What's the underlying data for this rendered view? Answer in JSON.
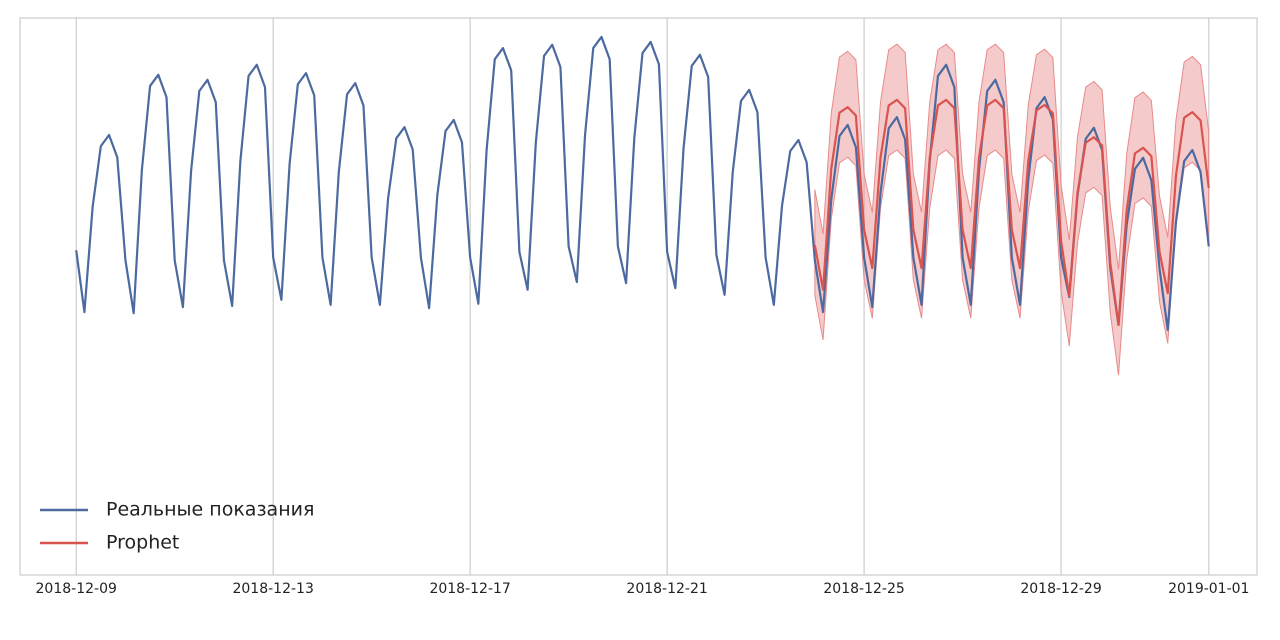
{
  "chart_data": {
    "type": "line",
    "xlim": [
      -27.4,
      575.5
    ],
    "ylim": [
      0,
      100
    ],
    "xticks": [
      {
        "value": 0,
        "label": "2018-12-09"
      },
      {
        "value": 96,
        "label": "2018-12-13"
      },
      {
        "value": 192,
        "label": "2018-12-17"
      },
      {
        "value": 288,
        "label": "2018-12-21"
      },
      {
        "value": 384,
        "label": "2018-12-25"
      },
      {
        "value": 480,
        "label": "2018-12-29"
      },
      {
        "value": 552,
        "label": "2019-01-01"
      }
    ],
    "grid": true,
    "legend": "lower left",
    "series": [
      {
        "name": "Реальные показания",
        "color": "#4c6aa0",
        "x": [
          0,
          4,
          8,
          12,
          16,
          20,
          24,
          28,
          32,
          36,
          40,
          44,
          48,
          52,
          56,
          60,
          64,
          68,
          72,
          76,
          80,
          84,
          88,
          92,
          96,
          100,
          104,
          108,
          112,
          116,
          120,
          124,
          128,
          132,
          136,
          140,
          144,
          148,
          152,
          156,
          160,
          164,
          168,
          172,
          176,
          180,
          184,
          188,
          192,
          196,
          200,
          204,
          208,
          212,
          216,
          220,
          224,
          228,
          232,
          236,
          240,
          244,
          248,
          252,
          256,
          260,
          264,
          268,
          272,
          276,
          280,
          284,
          288,
          292,
          296,
          300,
          304,
          308,
          312,
          316,
          320,
          324,
          328,
          332,
          336,
          340,
          344,
          348,
          352,
          356,
          360,
          364,
          368,
          372,
          376,
          380,
          384,
          388,
          392,
          396,
          400,
          404,
          408,
          412,
          416,
          420,
          424,
          428,
          432,
          436,
          440,
          444,
          448,
          452,
          456,
          460,
          464,
          468,
          472,
          476,
          480,
          484,
          488,
          492,
          496,
          500,
          504,
          508,
          512,
          516,
          520,
          524,
          528,
          532,
          536,
          540,
          544,
          548,
          552
        ],
        "values": [
          58.3,
          47.2,
          66.1,
          77.0,
          79.0,
          75.0,
          56.5,
          47.0,
          72.7,
          87.8,
          89.8,
          85.8,
          56.5,
          48.1,
          72.6,
          86.9,
          88.9,
          84.9,
          56.5,
          48.3,
          74.3,
          89.6,
          91.6,
          87.6,
          57,
          49.4,
          73.8,
          88.1,
          90.1,
          86.1,
          57,
          48.5,
          72.4,
          86.3,
          88.3,
          84.3,
          57,
          48.5,
          67.6,
          78.4,
          80.4,
          76.4,
          57,
          47.9,
          68.2,
          79.7,
          81.7,
          77.7,
          57,
          48.7,
          76.2,
          92.6,
          94.6,
          90.6,
          58,
          51.2,
          77.6,
          93.2,
          95.2,
          91.2,
          59,
          52.6,
          79.0,
          94.6,
          96.6,
          92.6,
          59,
          52.4,
          78.4,
          93.7,
          95.7,
          91.7,
          58,
          51.5,
          76.6,
          91.4,
          93.4,
          89.4,
          57.5,
          50.3,
          72.4,
          85.1,
          87.1,
          83.1,
          57,
          48.5,
          66.3,
          76.1,
          78.1,
          74.1,
          56.5,
          47.2,
          67.4,
          78.8,
          80.8,
          76.8,
          57,
          48.1,
          68.6,
          80.2,
          82.2,
          78.2,
          57,
          48.5,
          74.4,
          89.6,
          91.6,
          87.6,
          57,
          48.5,
          72.7,
          86.9,
          88.9,
          84.9,
          57,
          48.5,
          70.9,
          83.8,
          85.8,
          81.8,
          57,
          49.9,
          68.1,
          78.3,
          80.3,
          76.3,
          55,
          44.9,
          62.9,
          72.9,
          74.9,
          70.9,
          55,
          44.0,
          63.4,
          74.3,
          76.3,
          72.3,
          59
        ]
      },
      {
        "name": "Prophet",
        "color": "#d9534f",
        "band_color": "#e88a8a",
        "x": [
          360,
          364,
          368,
          372,
          376,
          380,
          384,
          388,
          392,
          396,
          400,
          404,
          408,
          412,
          416,
          420,
          424,
          428,
          432,
          436,
          440,
          444,
          448,
          452,
          456,
          460,
          464,
          468,
          472,
          476,
          480,
          484,
          488,
          492,
          496,
          500,
          504,
          508,
          512,
          516,
          520,
          524,
          528,
          532,
          536,
          540,
          544,
          548,
          552
        ],
        "values": [
          59.2,
          51.2,
          72.9,
          83.0,
          84.0,
          82.5,
          62,
          55.1,
          74.9,
          84.3,
          85.3,
          83.8,
          62,
          55.1,
          74.9,
          84.3,
          85.3,
          83.8,
          62,
          55.1,
          74.9,
          84.3,
          85.3,
          83.8,
          62,
          55.1,
          74.3,
          83.4,
          84.4,
          82.9,
          60,
          50.1,
          68.6,
          77.6,
          78.6,
          77.1,
          56,
          44.9,
          65.6,
          75.7,
          76.7,
          75.2,
          58,
          50.6,
          71.7,
          82.1,
          83.1,
          81.6,
          69.5
        ],
        "upper": [
          69.2,
          61.2,
          82.9,
          93.0,
          94.0,
          92.5,
          72,
          65.1,
          84.9,
          94.3,
          95.3,
          93.8,
          72,
          65.1,
          84.9,
          94.3,
          95.3,
          93.8,
          72,
          65.1,
          84.9,
          94.3,
          95.3,
          93.8,
          72,
          65.1,
          84.3,
          93.4,
          94.4,
          92.9,
          70,
          60.1,
          78.6,
          87.6,
          88.6,
          87.1,
          66,
          54.9,
          75.6,
          85.7,
          86.7,
          85.2,
          68,
          60.6,
          81.7,
          92.1,
          93.1,
          91.6,
          79.5
        ],
        "lower": [
          50.2,
          42.2,
          63.9,
          74.0,
          75.0,
          73.5,
          53,
          46.1,
          65.9,
          75.3,
          76.3,
          74.8,
          53,
          46.1,
          65.9,
          75.3,
          76.3,
          74.8,
          53,
          46.1,
          65.9,
          75.3,
          76.3,
          74.8,
          53,
          46.1,
          65.3,
          74.4,
          75.4,
          73.9,
          51,
          41.1,
          59.6,
          68.6,
          69.6,
          68.1,
          47,
          35.9,
          56.6,
          66.7,
          67.7,
          66.2,
          49,
          41.6,
          62.7,
          73.1,
          74.1,
          72.6,
          60.5
        ]
      }
    ]
  }
}
